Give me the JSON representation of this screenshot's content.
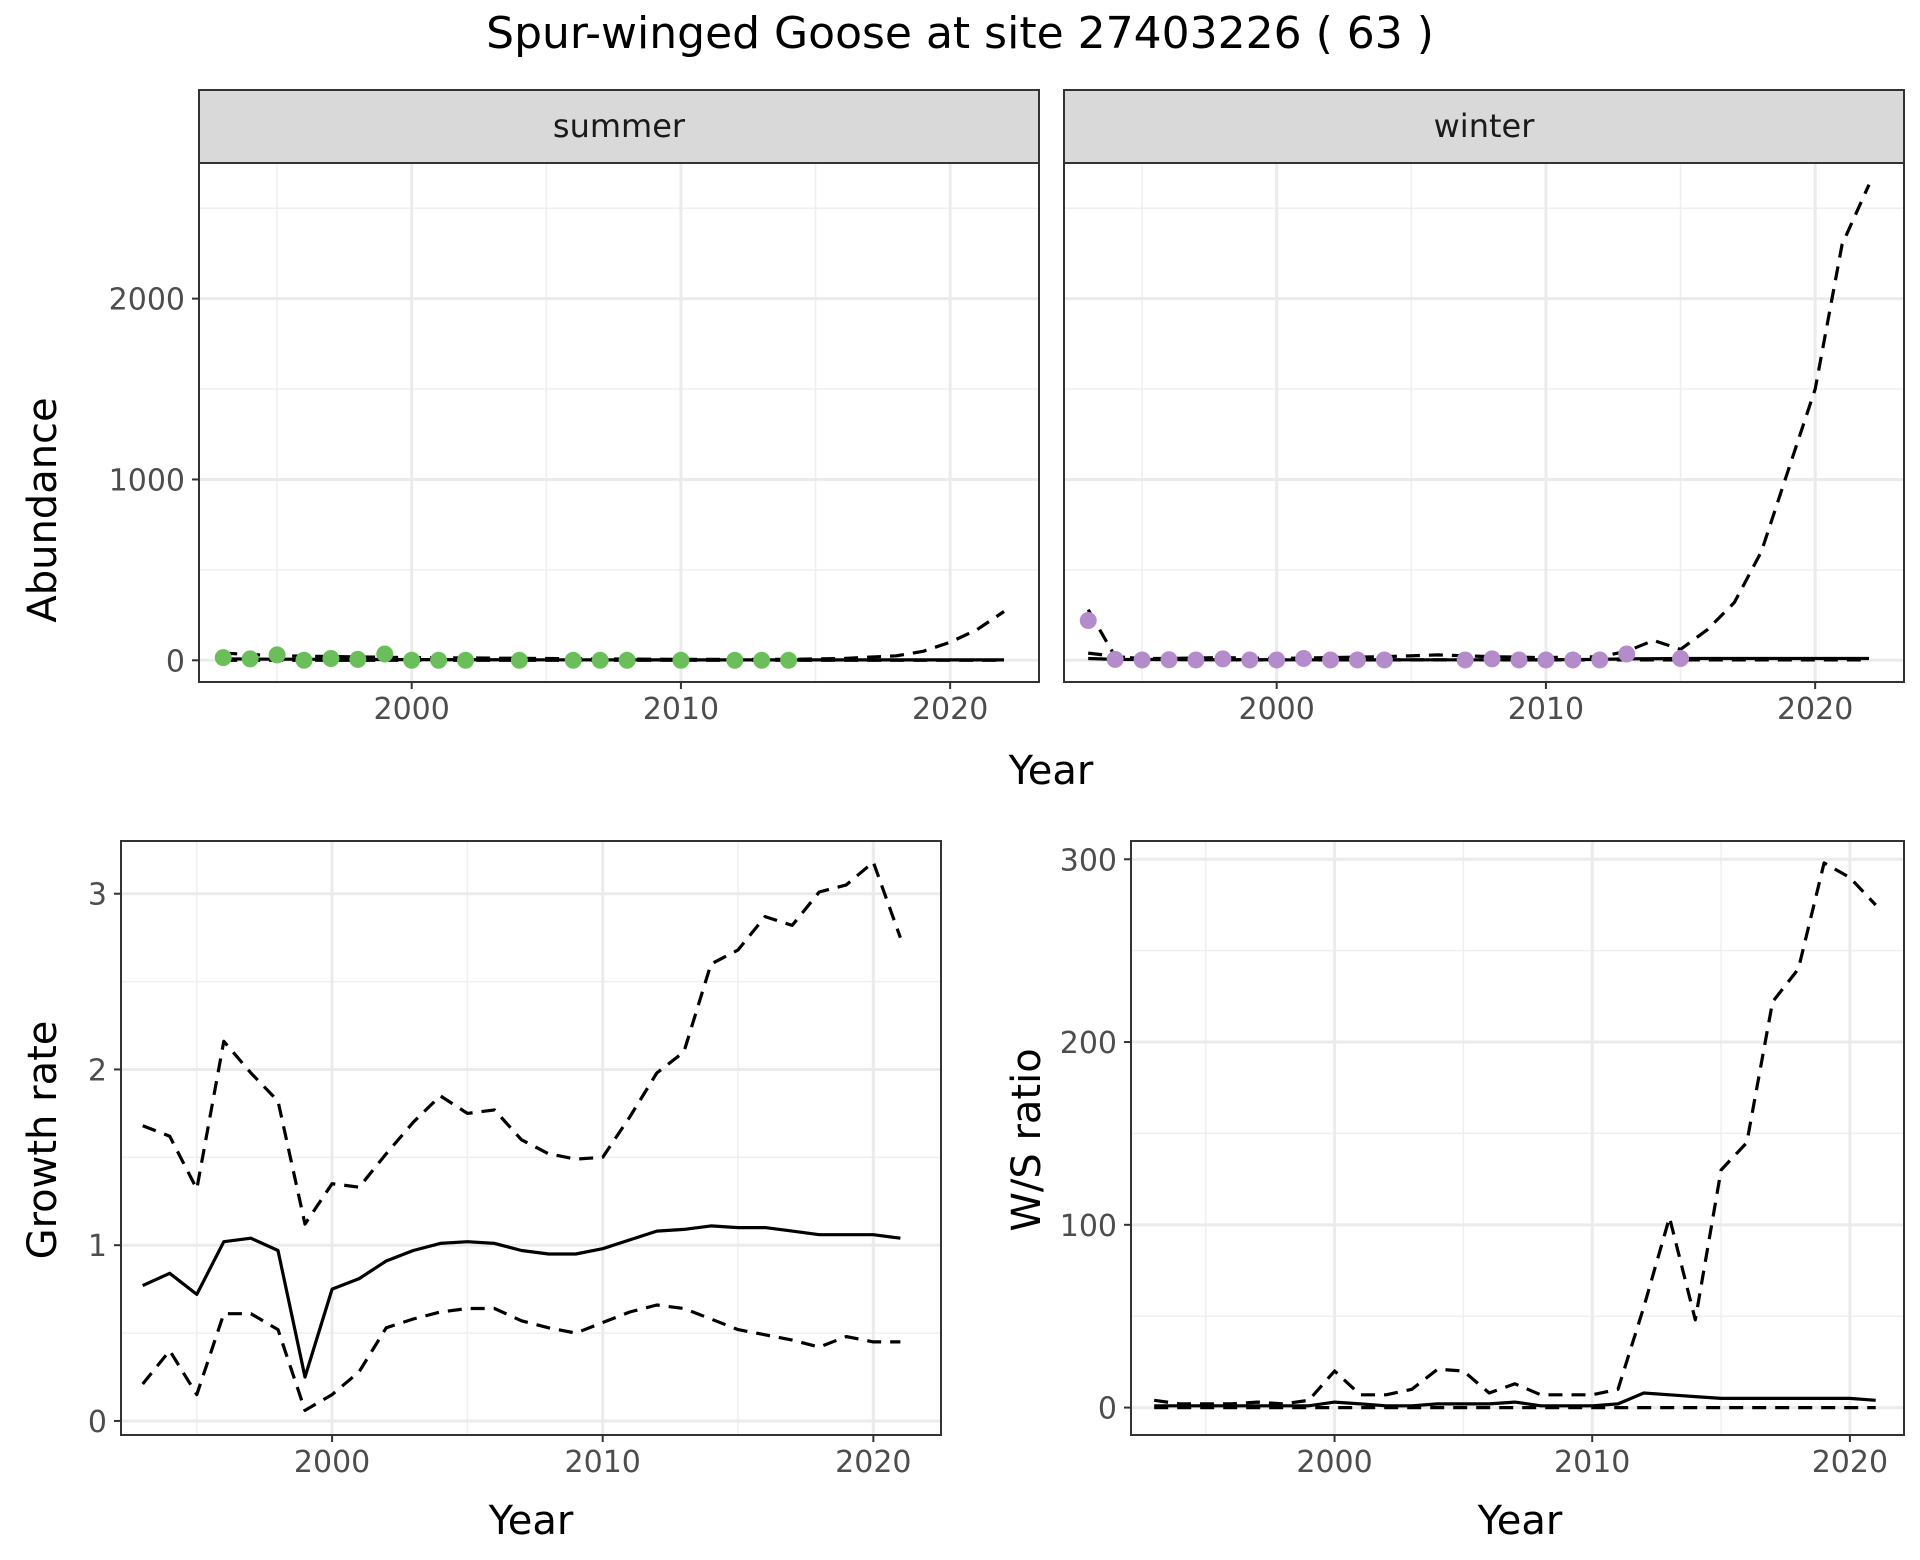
{
  "figure": {
    "title": "Spur-winged Goose at site 27403226 ( 63 )"
  },
  "colors": {
    "summer_points": "#6ABF5A",
    "winter_points": "#B48CCB",
    "line": "#000000",
    "grid": "#EBEBEB",
    "strip": "#D9D9D9"
  },
  "chart_data": [
    {
      "id": "abundance",
      "type": "scatter",
      "xlabel": "Year",
      "ylabel": "Abundance",
      "xticks": [
        2000,
        2010,
        2020
      ],
      "yticks": [
        0,
        1000,
        2000
      ],
      "xlim": [
        1992.1,
        2023.3
      ],
      "ylim": [
        -120,
        2750
      ],
      "grid": true,
      "facets": [
        {
          "label": "summer",
          "points": {
            "x": [
              1993,
              1994,
              1995,
              1996,
              1997,
              1998,
              1999,
              2000,
              2001,
              2002,
              2004,
              2006,
              2007,
              2008,
              2010,
              2012,
              2013,
              2014
            ],
            "y": [
              15,
              8,
              30,
              0,
              10,
              5,
              35,
              0,
              0,
              0,
              0,
              0,
              0,
              0,
              0,
              0,
              0,
              0
            ]
          },
          "fit": {
            "x": [
              1993,
              1995,
              2000,
              2005,
              2010,
              2014,
              2016,
              2018,
              2019,
              2020,
              2021,
              2022
            ],
            "y": [
              8,
              6,
              4,
              3,
              2,
              2,
              2,
              2,
              2,
              2,
              2,
              2
            ]
          },
          "upper": {
            "x": [
              1993,
              1995,
              2000,
              2005,
              2010,
              2014,
              2016,
              2018,
              2019,
              2020,
              2021,
              2022
            ],
            "y": [
              40,
              25,
              15,
              10,
              5,
              5,
              10,
              25,
              50,
              100,
              170,
              270
            ]
          },
          "lower": {
            "x": [
              1993,
              2000,
              2010,
              2022
            ],
            "y": [
              0,
              0,
              0,
              0
            ]
          }
        },
        {
          "label": "winter",
          "points": {
            "x": [
              1993,
              1994,
              1995,
              1996,
              1997,
              1998,
              1999,
              2000,
              2001,
              2002,
              2003,
              2004,
              2007,
              2008,
              2009,
              2010,
              2011,
              2012,
              2013,
              2015
            ],
            "y": [
              220,
              5,
              2,
              3,
              2,
              8,
              2,
              2,
              10,
              2,
              2,
              2,
              2,
              8,
              2,
              2,
              2,
              2,
              35,
              10
            ]
          },
          "fit": {
            "x": [
              1993,
              1994,
              2000,
              2005,
              2010,
              2012,
              2013,
              2015,
              2017,
              2020,
              2022
            ],
            "y": [
              10,
              5,
              3,
              3,
              3,
              5,
              8,
              10,
              10,
              10,
              10
            ]
          },
          "upper": {
            "x": [
              1993,
              1994,
              1995,
              1996,
              1998,
              2000,
              2002,
              2004,
              2006,
              2008,
              2010,
              2012,
              2013,
              2014,
              2015,
              2016,
              2017,
              2018,
              2019,
              2020,
              2021,
              2022
            ],
            "y": [
              280,
              20,
              10,
              10,
              15,
              10,
              15,
              20,
              30,
              20,
              15,
              20,
              50,
              110,
              60,
              170,
              320,
              600,
              1050,
              1500,
              2300,
              2630
            ]
          },
          "lower": {
            "x": [
              1993,
              1995,
              2000,
              2005,
              2010,
              2015,
              2020,
              2022
            ],
            "y": [
              40,
              5,
              2,
              2,
              2,
              2,
              2,
              2
            ]
          }
        }
      ]
    },
    {
      "id": "growth",
      "type": "line",
      "xlabel": "Year",
      "ylabel": "Growth rate",
      "xticks": [
        2000,
        2010,
        2020
      ],
      "yticks": [
        0,
        1,
        2,
        3
      ],
      "xlim": [
        1992.2,
        2022.5
      ],
      "ylim": [
        -0.08,
        3.3
      ],
      "grid": true,
      "series": [
        {
          "style": "solid",
          "x": [
            1993,
            1994,
            1995,
            1996,
            1997,
            1998,
            1999,
            2000,
            2001,
            2002,
            2003,
            2004,
            2005,
            2006,
            2007,
            2008,
            2009,
            2010,
            2011,
            2012,
            2013,
            2014,
            2015,
            2016,
            2017,
            2018,
            2019,
            2020,
            2021
          ],
          "y": [
            0.77,
            0.84,
            0.72,
            1.02,
            1.04,
            0.97,
            0.25,
            0.75,
            0.81,
            0.91,
            0.97,
            1.01,
            1.02,
            1.01,
            0.97,
            0.95,
            0.95,
            0.98,
            1.03,
            1.08,
            1.09,
            1.11,
            1.1,
            1.1,
            1.08,
            1.06,
            1.06,
            1.06,
            1.04
          ]
        },
        {
          "style": "dashed",
          "x": [
            1993,
            1994,
            1995,
            1996,
            1997,
            1998,
            1999,
            2000,
            2001,
            2002,
            2003,
            2004,
            2005,
            2006,
            2007,
            2008,
            2009,
            2010,
            2011,
            2012,
            2013,
            2014,
            2015,
            2016,
            2017,
            2018,
            2019,
            2020,
            2021
          ],
          "y": [
            1.68,
            1.62,
            1.32,
            2.16,
            1.98,
            1.82,
            1.12,
            1.35,
            1.33,
            1.52,
            1.7,
            1.85,
            1.75,
            1.77,
            1.6,
            1.52,
            1.49,
            1.5,
            1.73,
            1.98,
            2.1,
            2.6,
            2.68,
            2.87,
            2.82,
            3.01,
            3.05,
            3.18,
            2.75
          ]
        },
        {
          "style": "dashed",
          "x": [
            1993,
            1994,
            1995,
            1996,
            1997,
            1998,
            1999,
            2000,
            2001,
            2002,
            2003,
            2004,
            2005,
            2006,
            2007,
            2008,
            2009,
            2010,
            2011,
            2012,
            2013,
            2014,
            2015,
            2016,
            2017,
            2018,
            2019,
            2020,
            2021
          ],
          "y": [
            0.21,
            0.4,
            0.15,
            0.61,
            0.61,
            0.52,
            0.06,
            0.15,
            0.28,
            0.53,
            0.58,
            0.62,
            0.64,
            0.64,
            0.57,
            0.53,
            0.5,
            0.56,
            0.62,
            0.66,
            0.64,
            0.58,
            0.52,
            0.49,
            0.46,
            0.42,
            0.48,
            0.45,
            0.45
          ]
        }
      ]
    },
    {
      "id": "ratio",
      "type": "line",
      "xlabel": "Year",
      "ylabel": "W/S ratio",
      "xticks": [
        2000,
        2010,
        2020
      ],
      "yticks": [
        0,
        100,
        200,
        300
      ],
      "xlim": [
        1992.1,
        2022.1
      ],
      "ylim": [
        -15,
        310
      ],
      "grid": true,
      "series": [
        {
          "style": "solid",
          "x": [
            1993,
            1994,
            1995,
            1996,
            1997,
            1998,
            1999,
            2000,
            2001,
            2002,
            2003,
            2004,
            2005,
            2006,
            2007,
            2008,
            2009,
            2010,
            2011,
            2012,
            2013,
            2014,
            2015,
            2016,
            2017,
            2018,
            2019,
            2020,
            2021
          ],
          "y": [
            1,
            1,
            1,
            1,
            1,
            1,
            1,
            3,
            2,
            1,
            1,
            2,
            2,
            2,
            3,
            1,
            1,
            1,
            2,
            8,
            7,
            6,
            5,
            5,
            5,
            5,
            5,
            5,
            4
          ]
        },
        {
          "style": "dashed",
          "x": [
            1993,
            1994,
            1995,
            1996,
            1997,
            1998,
            1999,
            2000,
            2001,
            2002,
            2003,
            2004,
            2005,
            2006,
            2007,
            2008,
            2009,
            2010,
            2011,
            2012,
            2013,
            2014,
            2015,
            2016,
            2017,
            2018,
            2019,
            2020,
            2021
          ],
          "y": [
            4,
            2,
            2,
            2,
            3,
            2,
            4,
            20,
            7,
            7,
            10,
            21,
            20,
            8,
            13,
            7,
            7,
            7,
            10,
            55,
            104,
            48,
            130,
            145,
            222,
            240,
            298,
            290,
            275
          ]
        },
        {
          "style": "dashed",
          "x": [
            1993,
            2000,
            2010,
            2015,
            2021
          ],
          "y": [
            0,
            0,
            0,
            0,
            0
          ]
        }
      ]
    }
  ]
}
